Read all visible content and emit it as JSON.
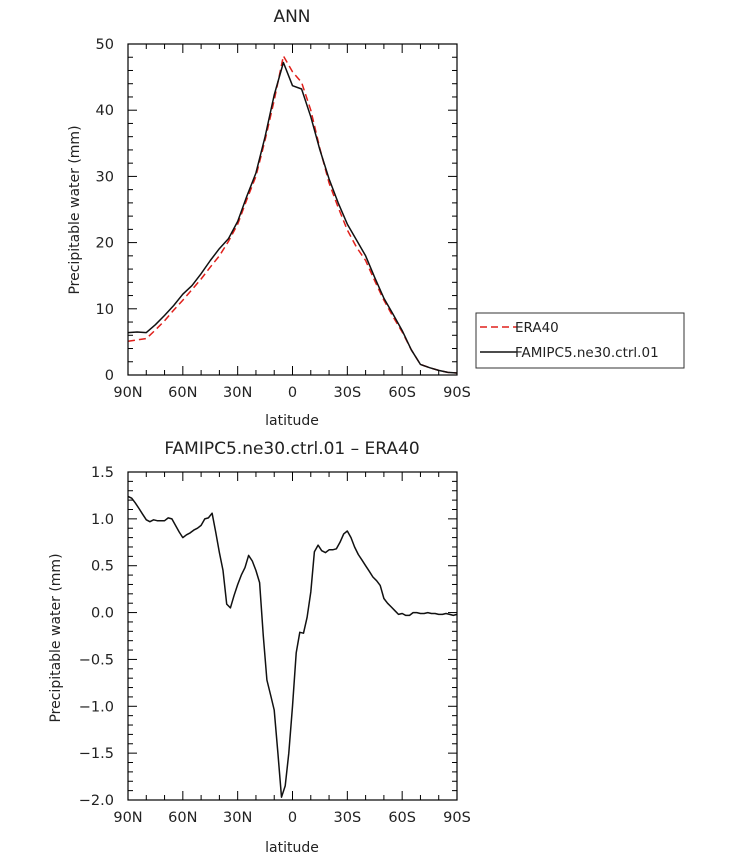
{
  "chart_data": [
    {
      "type": "line",
      "title": "ANN",
      "xlabel": "latitude",
      "ylabel": "Precipitable water  (mm)",
      "xlim": [
        90,
        -90
      ],
      "ylim": [
        0,
        50
      ],
      "x_ticks": [
        90,
        60,
        30,
        0,
        -30,
        -60,
        -90
      ],
      "x_tick_labels": [
        "90N",
        "60N",
        "30N",
        "0",
        "30S",
        "60S",
        "90S"
      ],
      "y_ticks": [
        0,
        10,
        20,
        30,
        40,
        50
      ],
      "y_tick_labels": [
        "0",
        "10",
        "20",
        "30",
        "40",
        "50"
      ],
      "legend_position": "right",
      "series": [
        {
          "name": "ERA40",
          "color": "#e0201b",
          "dash": "dashed",
          "x": [
            90,
            85,
            80,
            75,
            70,
            65,
            60,
            55,
            50,
            45,
            40,
            35,
            30,
            25,
            20,
            15,
            10,
            5,
            0,
            -5,
            -10,
            -15,
            -20,
            -25,
            -30,
            -35,
            -40,
            -45,
            -50,
            -55,
            -60,
            -65,
            -70,
            -75,
            -80,
            -85,
            -90
          ],
          "values": [
            5.1,
            5.3,
            5.5,
            6.8,
            8.2,
            9.8,
            11.3,
            12.9,
            14.5,
            16.3,
            18.0,
            20.2,
            22.8,
            26.5,
            30.0,
            35.5,
            41.5,
            48.2,
            45.8,
            44.2,
            40.0,
            34.2,
            29.0,
            25.3,
            21.9,
            19.3,
            17.3,
            14.2,
            11.3,
            8.8,
            6.5,
            3.8,
            1.6,
            1.1,
            0.7,
            0.4,
            0.3
          ]
        },
        {
          "name": "FAMIPC5.ne30.ctrl.01",
          "color": "#111111",
          "dash": "solid",
          "x": [
            90,
            85,
            80,
            75,
            70,
            65,
            60,
            55,
            50,
            45,
            40,
            35,
            30,
            25,
            20,
            15,
            10,
            5,
            0,
            -5,
            -10,
            -15,
            -20,
            -25,
            -30,
            -35,
            -40,
            -45,
            -50,
            -55,
            -60,
            -65,
            -70,
            -75,
            -80,
            -85,
            -90
          ],
          "values": [
            6.4,
            6.5,
            6.4,
            7.6,
            9.0,
            10.5,
            12.2,
            13.5,
            15.3,
            17.3,
            19.1,
            20.6,
            23.2,
            27.0,
            30.5,
            36.0,
            42.3,
            47.2,
            43.7,
            43.2,
            39.0,
            34.0,
            29.6,
            26.0,
            22.8,
            20.4,
            18.0,
            14.7,
            11.6,
            9.2,
            6.7,
            3.8,
            1.6,
            1.1,
            0.7,
            0.4,
            0.3
          ]
        }
      ]
    },
    {
      "type": "line",
      "title": "FAMIPC5.ne30.ctrl.01 – ERA40",
      "xlabel": "latitude",
      "ylabel": "Precipitable water (mm)",
      "xlim": [
        90,
        -90
      ],
      "ylim": [
        -2.0,
        1.5
      ],
      "x_ticks": [
        90,
        60,
        30,
        0,
        -30,
        -60,
        -90
      ],
      "x_tick_labels": [
        "90N",
        "60N",
        "30N",
        "0",
        "30S",
        "60S",
        "90S"
      ],
      "y_ticks": [
        -2.0,
        -1.5,
        -1.0,
        -0.5,
        0.0,
        0.5,
        1.0,
        1.5
      ],
      "y_tick_labels": [
        "−2.0",
        "−1.5",
        "−1.0",
        "−0.5",
        "0.0",
        "0.5",
        "1.0",
        "1.5"
      ],
      "series": [
        {
          "color": "#111111",
          "dash": "solid",
          "x": [
            90,
            88,
            86,
            84,
            82,
            80,
            78,
            76,
            74,
            72,
            70,
            68,
            66,
            64,
            62,
            60,
            58,
            56,
            54,
            52,
            50,
            48,
            46,
            44,
            42,
            40,
            38,
            36,
            34,
            32,
            30,
            28,
            26,
            24,
            22,
            20,
            18,
            16,
            14,
            12,
            10,
            8,
            6,
            4,
            2,
            0,
            -2,
            -4,
            -6,
            -8,
            -10,
            -12,
            -14,
            -16,
            -18,
            -20,
            -22,
            -24,
            -26,
            -28,
            -30,
            -32,
            -34,
            -36,
            -38,
            -40,
            -42,
            -44,
            -46,
            -48,
            -50,
            -52,
            -54,
            -56,
            -58,
            -60,
            -62,
            -64,
            -66,
            -68,
            -70,
            -72,
            -74,
            -76,
            -78,
            -80,
            -82,
            -84,
            -86,
            -88,
            -90
          ],
          "values": [
            1.24,
            1.22,
            1.17,
            1.11,
            1.05,
            0.99,
            0.97,
            0.99,
            0.98,
            0.98,
            0.98,
            1.01,
            1.0,
            0.93,
            0.86,
            0.8,
            0.83,
            0.85,
            0.88,
            0.9,
            0.93,
            1.0,
            1.01,
            1.06,
            0.86,
            0.64,
            0.45,
            0.09,
            0.05,
            0.18,
            0.3,
            0.4,
            0.48,
            0.61,
            0.55,
            0.45,
            0.32,
            -0.25,
            -0.72,
            -0.88,
            -1.04,
            -1.5,
            -1.97,
            -1.85,
            -1.5,
            -1.0,
            -0.43,
            -0.21,
            -0.22,
            -0.05,
            0.22,
            0.65,
            0.72,
            0.66,
            0.64,
            0.67,
            0.67,
            0.68,
            0.75,
            0.84,
            0.87,
            0.8,
            0.7,
            0.62,
            0.56,
            0.5,
            0.44,
            0.38,
            0.34,
            0.29,
            0.15,
            0.1,
            0.06,
            0.02,
            -0.02,
            -0.01,
            -0.03,
            -0.03,
            0.0,
            0.0,
            -0.01,
            -0.01,
            0.0,
            -0.01,
            -0.01,
            -0.02,
            -0.02,
            -0.01,
            -0.02,
            -0.03,
            -0.02
          ]
        }
      ]
    }
  ]
}
